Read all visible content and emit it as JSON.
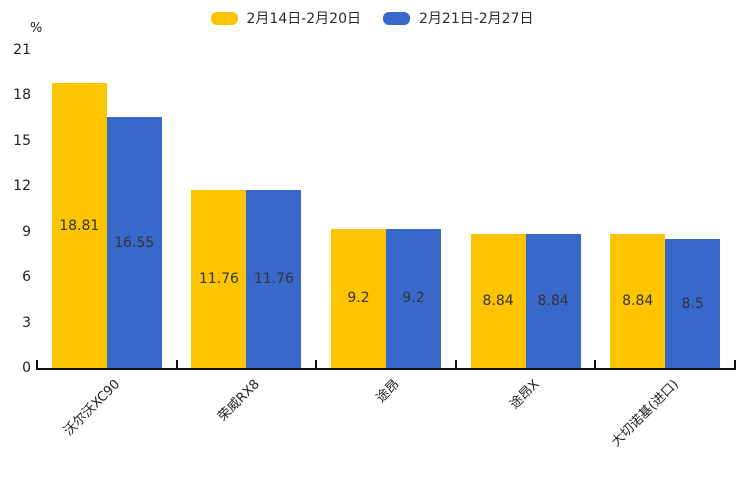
{
  "chart_data": {
    "type": "bar",
    "title": "",
    "unit_label": "%",
    "categories": [
      "沃尔沃XC90",
      "荣威RX8",
      "途昂",
      "途昂X",
      "大切诺基(进口)"
    ],
    "series": [
      {
        "name": "2月14日-2月20日",
        "color": "#FDC500",
        "values": [
          18.81,
          11.76,
          9.2,
          8.84,
          8.84
        ]
      },
      {
        "name": "2月21日-2月27日",
        "color": "#3968CB",
        "values": [
          16.55,
          11.76,
          9.2,
          8.84,
          8.5
        ]
      }
    ],
    "ylabel": "%",
    "ylim": [
      0,
      21
    ],
    "yticks": [
      0,
      3,
      6,
      9,
      12,
      15,
      18,
      21
    ],
    "grid": false,
    "legend_position": "top-center",
    "value_labels": "centered-inside-bars",
    "axis_color": "#111111",
    "label_color": "#333333"
  }
}
